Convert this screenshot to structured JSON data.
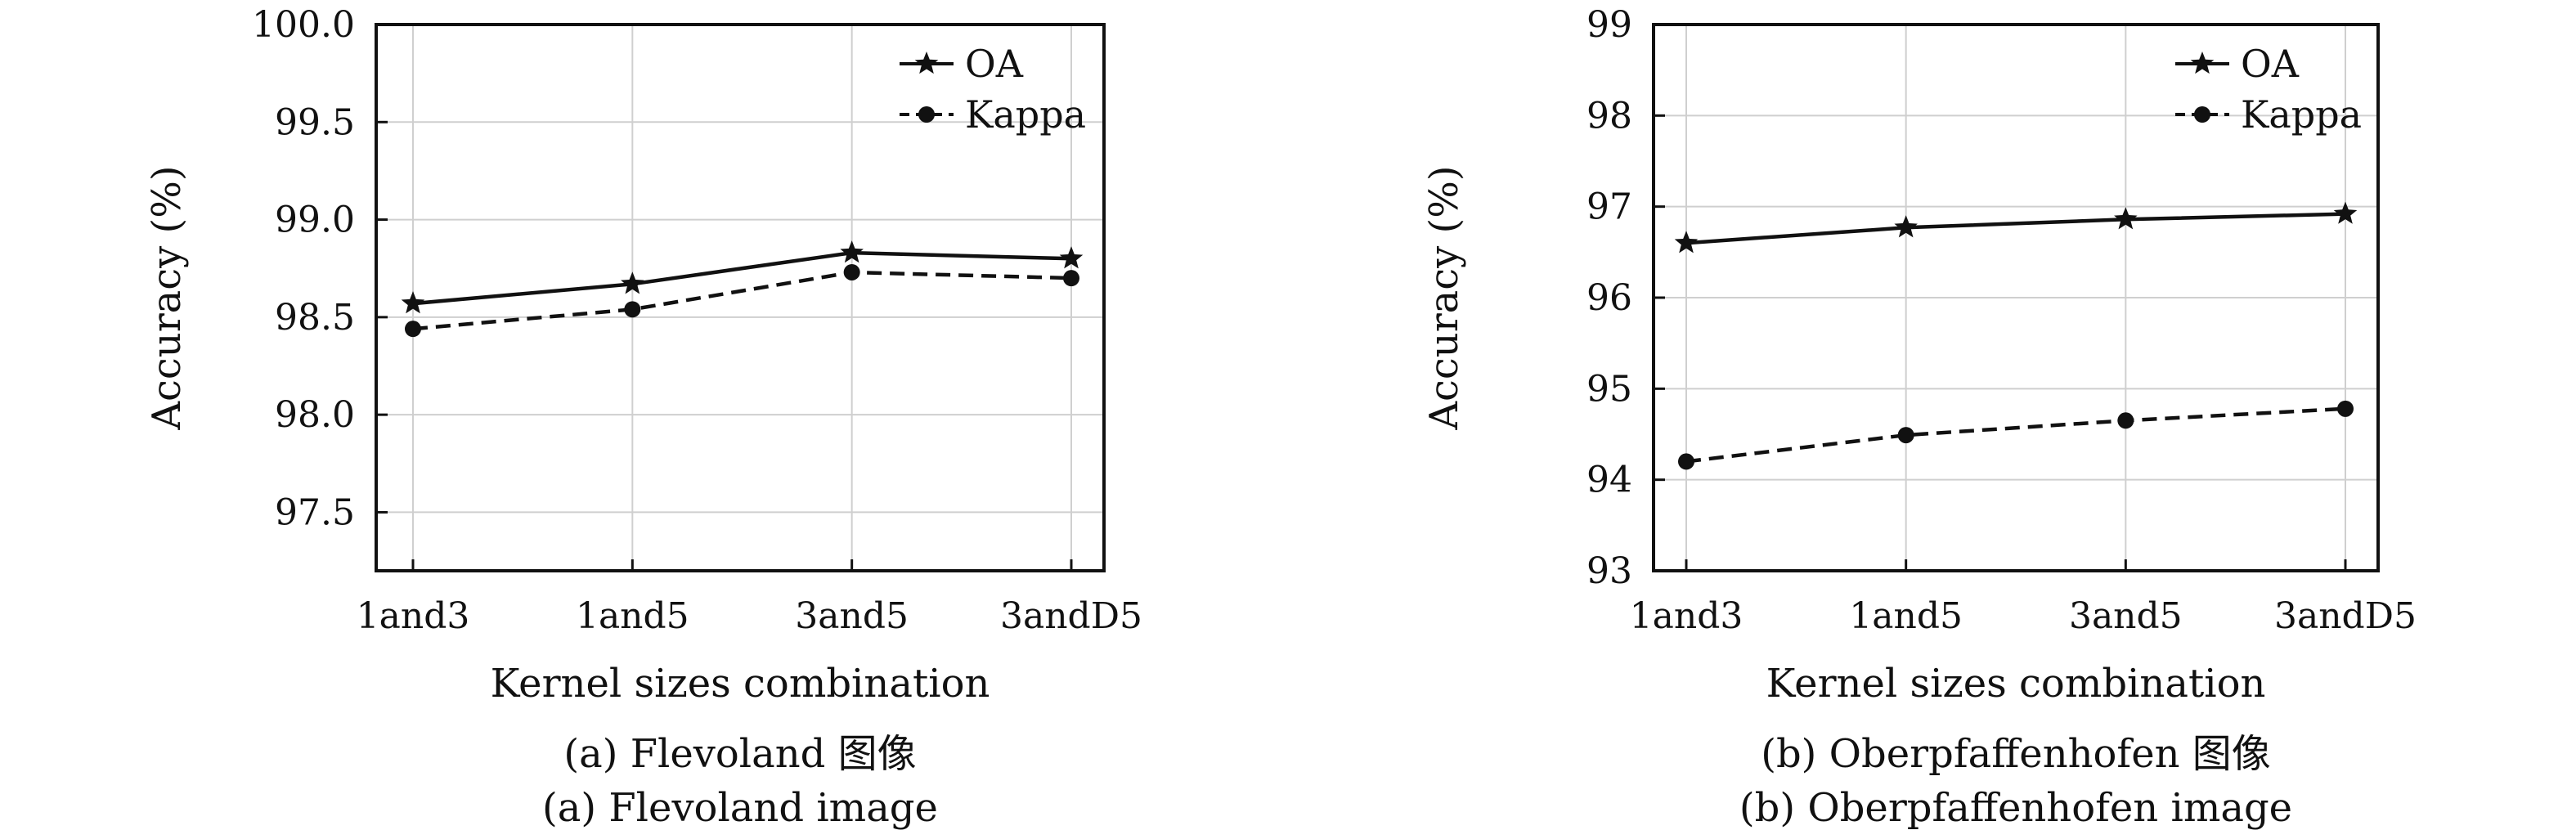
{
  "chart_data": [
    {
      "type": "line",
      "categories": [
        "1and3",
        "1and5",
        "3and5",
        "3andD5"
      ],
      "series": [
        {
          "name": "OA",
          "values": [
            98.57,
            98.67,
            98.83,
            98.8
          ],
          "marker": "star",
          "line": "solid"
        },
        {
          "name": "Kappa",
          "values": [
            98.44,
            98.54,
            98.73,
            98.7
          ],
          "marker": "circle",
          "line": "dashed"
        }
      ],
      "xlabel": "Kernel sizes combination",
      "ylabel": "Accuracy (%)",
      "ylim": [
        97.2,
        100.0
      ],
      "yticks": [
        "97.5",
        "98.0",
        "98.5",
        "99.0",
        "99.5",
        "100.0"
      ],
      "grid": true,
      "legend_position": "top-right",
      "caption_cn": "(a) Flevoland 图像",
      "caption_en": "(a) Flevoland image"
    },
    {
      "type": "line",
      "categories": [
        "1and3",
        "1and5",
        "3and5",
        "3andD5"
      ],
      "series": [
        {
          "name": "OA",
          "values": [
            96.6,
            96.77,
            96.86,
            96.92
          ],
          "marker": "star",
          "line": "solid"
        },
        {
          "name": "Kappa",
          "values": [
            94.2,
            94.49,
            94.65,
            94.78
          ],
          "marker": "circle",
          "line": "dashed"
        }
      ],
      "xlabel": "Kernel sizes combination",
      "ylabel": "Accuracy (%)",
      "ylim": [
        93,
        99
      ],
      "yticks": [
        "93",
        "94",
        "95",
        "96",
        "97",
        "98",
        "99"
      ],
      "grid": true,
      "legend_position": "top-right",
      "caption_cn": "(b) Oberpfaffenhofen 图像",
      "caption_en": "(b) Oberpfaffenhofen image"
    }
  ],
  "colors": {
    "ink": "#111111",
    "grid": "#cfcfcf"
  }
}
